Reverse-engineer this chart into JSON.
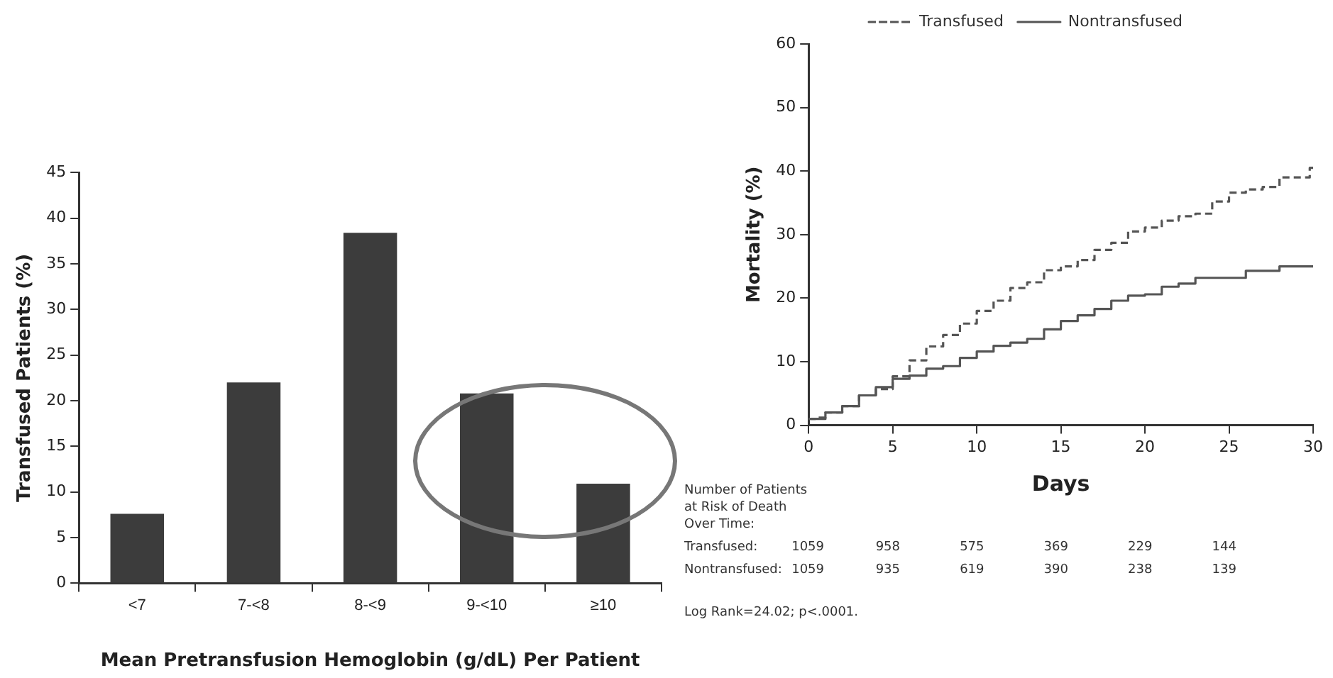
{
  "chart_data": [
    {
      "type": "bar",
      "ylabel": "Transfused Patients (%)",
      "xlabel": "Mean Pretransfusion Hemoglobin (g/dL) Per Patient",
      "categories": [
        "<7",
        "7-<8",
        "8-<9",
        "9-<10",
        "≥10"
      ],
      "values": [
        7.6,
        22,
        38.4,
        20.8,
        10.9
      ],
      "color": "#3c3c3c",
      "ylim": [
        0,
        45
      ],
      "yticks": [
        0,
        5,
        10,
        15,
        20,
        25,
        30,
        35,
        40,
        45
      ],
      "grid": false,
      "legend": false
    },
    {
      "type": "step",
      "xlabel": "Days",
      "ylabel": "Mortality (%)",
      "xlim": [
        0,
        30
      ],
      "xticks": [
        0,
        5,
        10,
        15,
        20,
        25,
        30
      ],
      "ylim": [
        0,
        60
      ],
      "yticks": [
        0,
        10,
        20,
        30,
        40,
        50,
        60
      ],
      "grid": false,
      "legend": "top",
      "series": [
        {
          "name": "Transfused",
          "color": "#555555",
          "line_style": "dashed",
          "x": [
            0,
            0.5,
            1,
            2,
            3,
            4,
            5,
            6,
            7,
            8,
            9,
            10,
            11,
            12,
            13,
            14,
            15,
            16,
            17,
            18,
            19,
            20,
            21,
            22,
            23,
            24,
            25,
            26,
            27,
            28,
            29.8,
            30
          ],
          "values": [
            1,
            1.2,
            2,
            3,
            4.7,
            5.7,
            7.7,
            10.2,
            12.4,
            14.2,
            16,
            18,
            19.6,
            21.6,
            22.5,
            24.4,
            25,
            26,
            27.6,
            28.7,
            30.5,
            31.1,
            32.2,
            32.9,
            33.3,
            35.2,
            36.6,
            37.1,
            37.5,
            39,
            40.5,
            40.5
          ]
        },
        {
          "name": "Nontransfused",
          "color": "#555555",
          "line_style": "solid",
          "x": [
            0,
            1,
            2,
            3,
            4,
            5,
            6,
            7,
            8,
            9,
            10,
            11,
            12,
            13,
            14,
            15,
            16,
            17,
            18,
            19,
            20,
            21,
            22,
            23,
            26,
            28,
            30
          ],
          "values": [
            1,
            2,
            3,
            4.7,
            6,
            7.3,
            7.8,
            8.9,
            9.3,
            10.6,
            11.6,
            12.5,
            13,
            13.6,
            15.1,
            16.4,
            17.3,
            18.3,
            19.6,
            20.4,
            20.6,
            21.8,
            22.3,
            23.2,
            24.3,
            25,
            25
          ]
        }
      ],
      "annotations": [
        "Number of Patients\nat Risk of Death\nOver Time:",
        "Transfused:\t1059\t958\t575\t369\t229\t144",
        "Nontransfused:\t1059\t935\t619\t390\t238\t139",
        "Log Rank=24.02; p<.0001."
      ]
    }
  ]
}
